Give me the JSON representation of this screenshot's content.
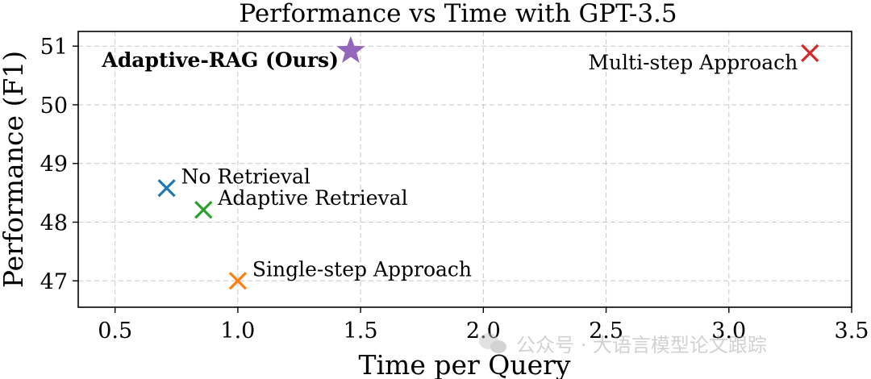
{
  "chart_data": {
    "type": "scatter",
    "title": "Performance vs Time with GPT-3.5",
    "xlabel": "Time per Query",
    "ylabel": "Performance (F1)",
    "xlim": [
      0.35,
      3.5
    ],
    "ylim": [
      46.55,
      51.25
    ],
    "xticks": [
      0.5,
      1.0,
      1.5,
      2.0,
      2.5,
      3.0,
      3.5
    ],
    "xtick_labels": [
      "0.5",
      "1.0",
      "1.5",
      "2.0",
      "2.5",
      "3.0",
      "3.5"
    ],
    "yticks": [
      47,
      48,
      49,
      50,
      51
    ],
    "ytick_labels": [
      "47",
      "48",
      "49",
      "50",
      "51"
    ],
    "grid": true,
    "points": [
      {
        "label": "No Retrieval",
        "x": 0.71,
        "y": 48.58,
        "marker": "x",
        "color": "#1f77b4",
        "bold": false,
        "label_side": "right"
      },
      {
        "label": "Adaptive Retrieval",
        "x": 0.86,
        "y": 48.21,
        "marker": "x",
        "color": "#2ca02c",
        "bold": false,
        "label_side": "right"
      },
      {
        "label": "Single-step Approach",
        "x": 1.0,
        "y": 47.0,
        "marker": "x",
        "color": "#ff7f0e",
        "bold": false,
        "label_side": "right"
      },
      {
        "label": "Adaptive-RAG (Ours)",
        "x": 1.46,
        "y": 50.92,
        "marker": "star",
        "color": "#9467bd",
        "bold": true,
        "label_side": "left"
      },
      {
        "label": "Multi-step Approach",
        "x": 3.33,
        "y": 50.88,
        "marker": "x",
        "color": "#d62728",
        "bold": false,
        "label_side": "left"
      }
    ]
  },
  "watermark": {
    "text": "公众号 · 大语言模型论文跟踪",
    "icon": "wechat-icon"
  }
}
